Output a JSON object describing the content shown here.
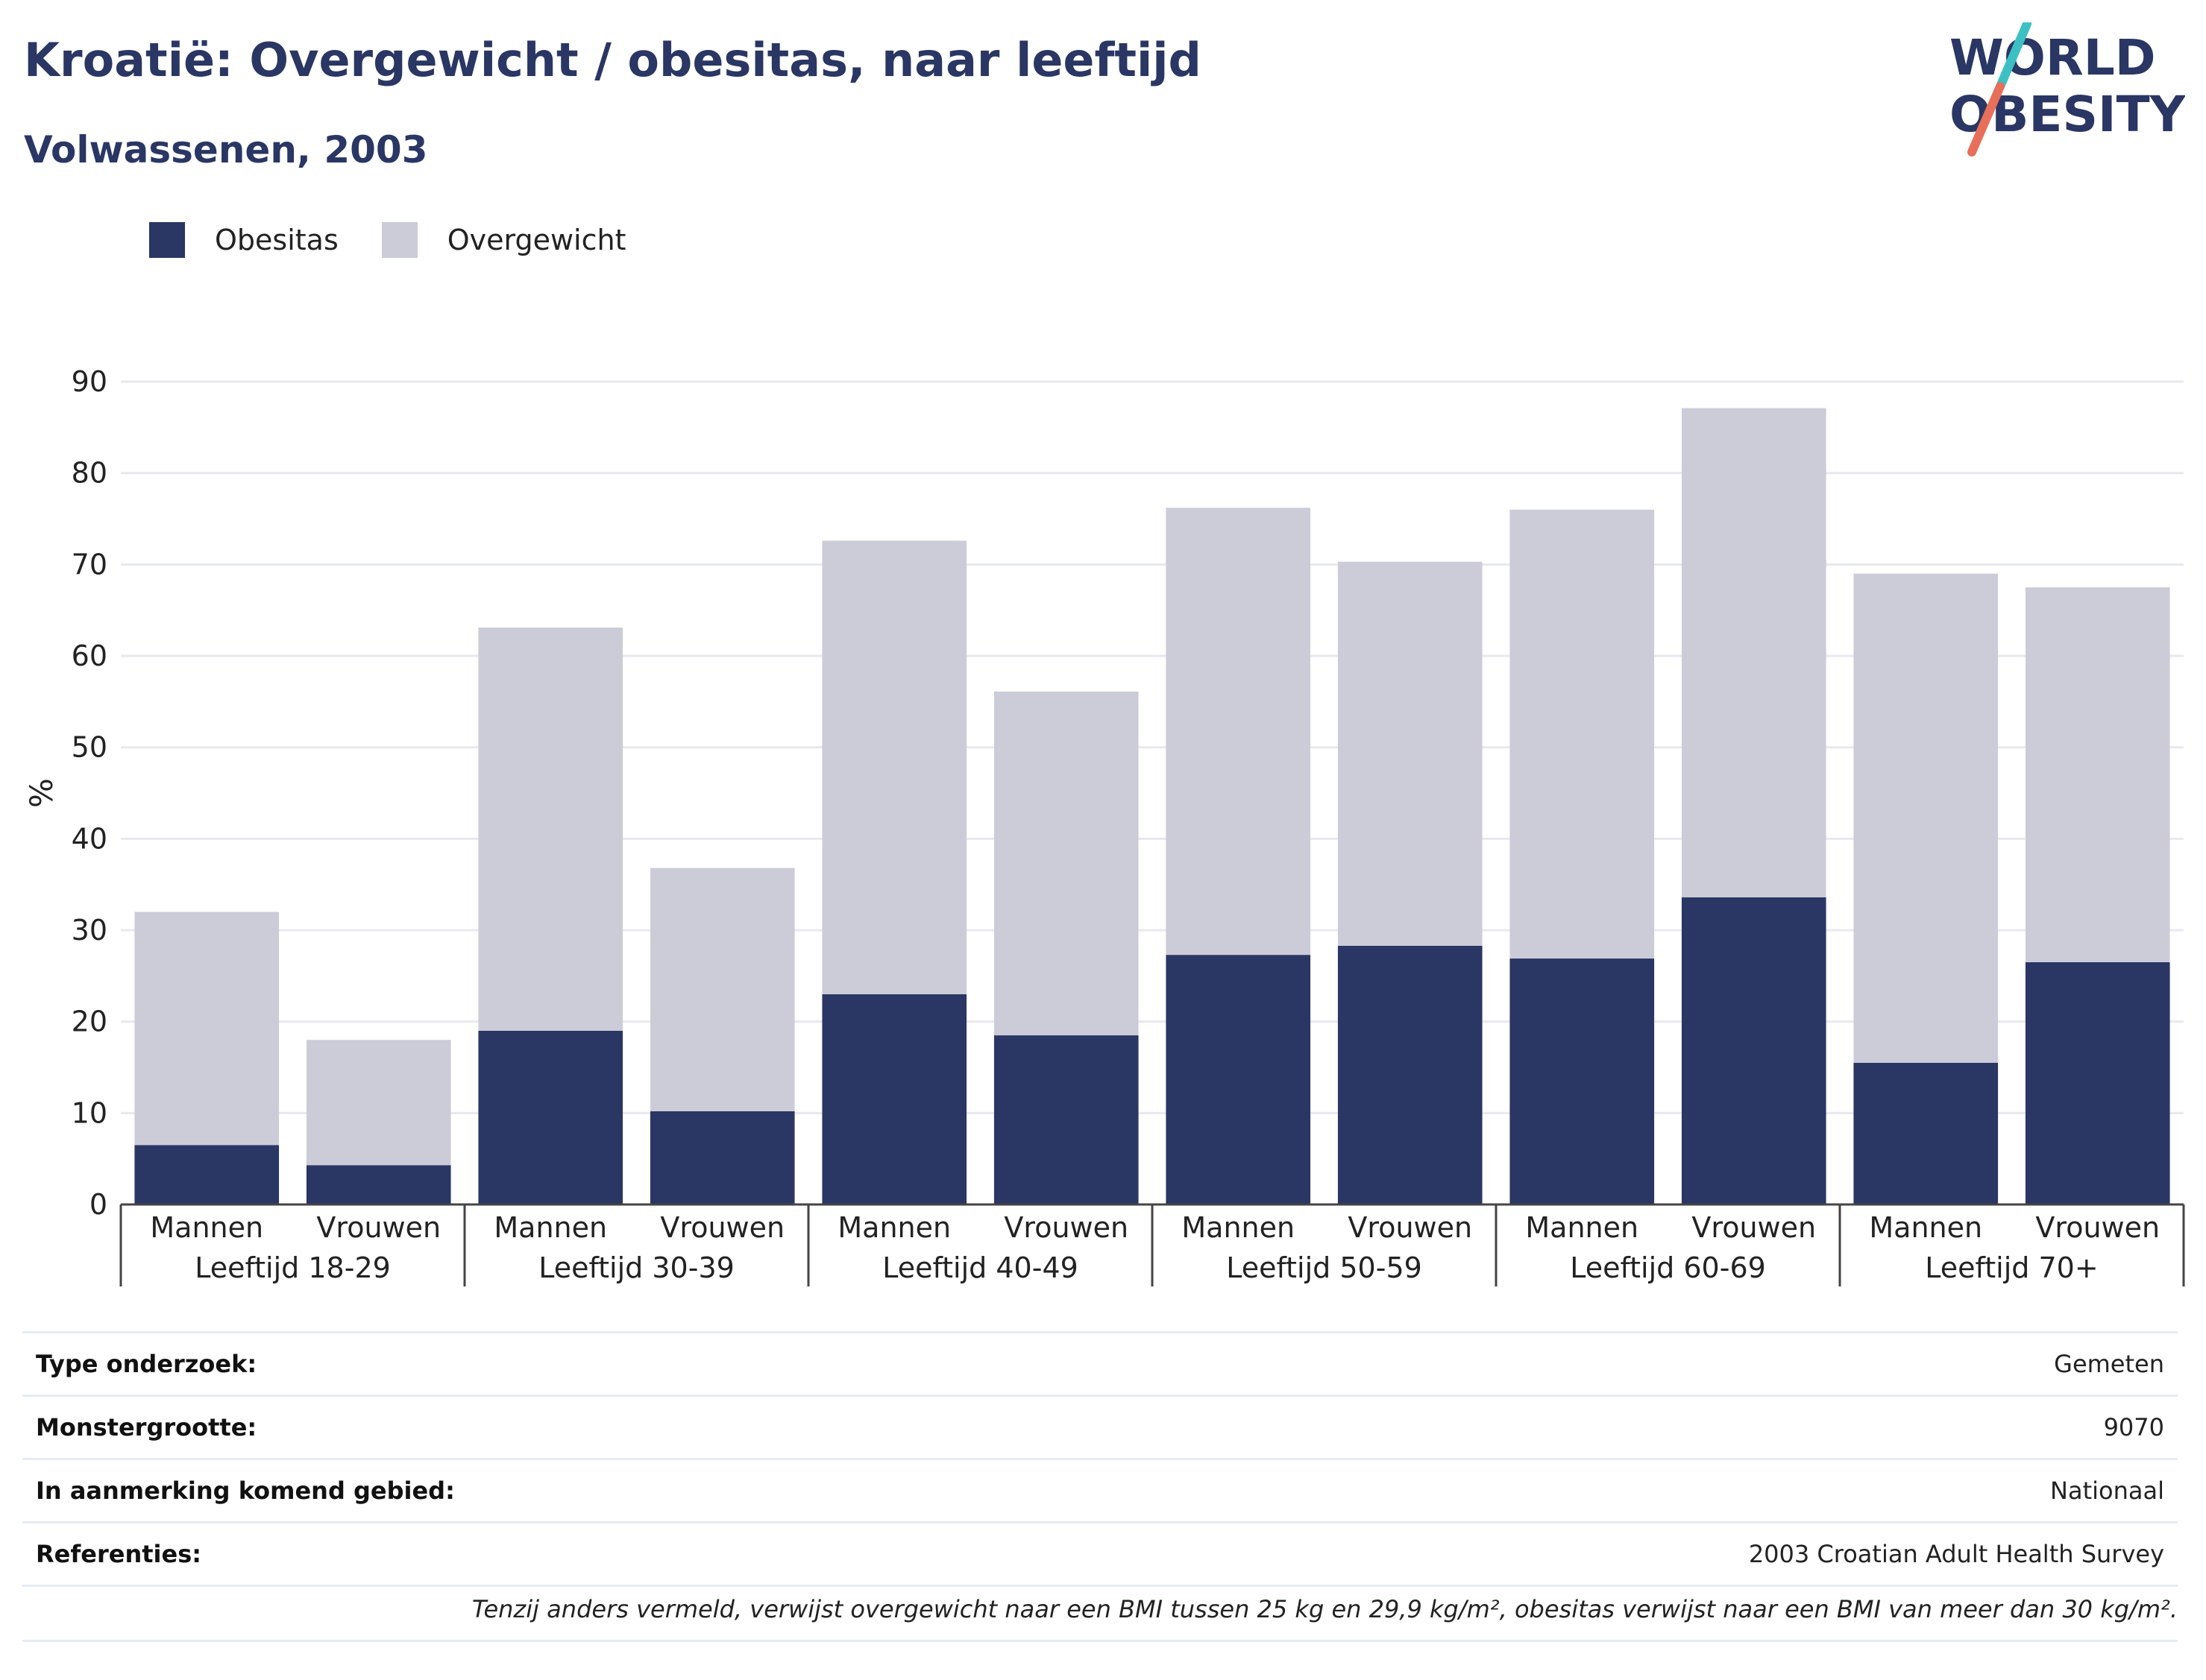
{
  "header": {
    "title": "Kroatië: Overgewicht / obesitas, naar leeftijd",
    "subtitle": "Volwassenen, 2003"
  },
  "logo": {
    "line1": "WORLD",
    "line2": "OBESITY",
    "slash_colors": [
      "#3cc0c4",
      "#e8705a"
    ]
  },
  "legend": [
    {
      "name": "Obesitas",
      "color": "#2a3663"
    },
    {
      "name": "Overgewicht",
      "color": "#cbccd8"
    }
  ],
  "chart_data": {
    "type": "bar",
    "stacked": true,
    "ylabel": "%",
    "ylim": [
      0,
      90
    ],
    "yticks": [
      0,
      10,
      20,
      30,
      40,
      50,
      60,
      70,
      80,
      90
    ],
    "grid": true,
    "groups": [
      "Leeftijd 18-29",
      "Leeftijd 30-39",
      "Leeftijd 40-49",
      "Leeftijd 50-59",
      "Leeftijd 60-69",
      "Leeftijd 70+"
    ],
    "subcategories": [
      "Mannen",
      "Vrouwen"
    ],
    "series": [
      {
        "name": "Obesitas",
        "values": [
          6.5,
          4.3,
          19.0,
          10.2,
          23.0,
          18.5,
          27.3,
          28.3,
          26.9,
          33.6,
          15.5,
          26.5
        ]
      },
      {
        "name": "Overgewicht",
        "values": [
          25.5,
          13.7,
          44.1,
          26.6,
          49.6,
          37.6,
          48.9,
          42.0,
          49.1,
          53.5,
          53.5,
          41.0
        ]
      }
    ]
  },
  "info": [
    {
      "key": "Type onderzoek:",
      "value": "Gemeten"
    },
    {
      "key": "Monstergrootte:",
      "value": "9070"
    },
    {
      "key": "In aanmerking komend gebied:",
      "value": "Nationaal"
    },
    {
      "key": "Referenties:",
      "value": "2003 Croatian Adult Health Survey"
    }
  ],
  "footnote": "Tenzij anders vermeld, verwijst overgewicht naar een BMI tussen 25 kg en 29,9 kg/m², obesitas verwijst naar een BMI van meer dan 30 kg/m²."
}
